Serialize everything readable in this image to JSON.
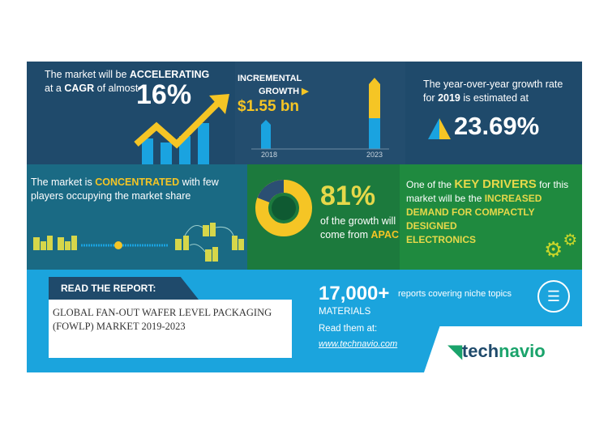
{
  "p1": {
    "l1a": "The market will be ",
    "l1b": "ACCELERATING",
    "l2a": "at a ",
    "l2b": "CAGR",
    "l2c": " of almost",
    "big": "16%"
  },
  "p2": {
    "t1": "INCREMENTAL",
    "t2": "GROWTH",
    "value": "$1.55 bn",
    "x1": "2018",
    "x2": "2023"
  },
  "p3": {
    "l1": "The year-over-year growth rate",
    "l2a": "for ",
    "l2b": "2019",
    "l2c": " is estimated at",
    "big": "23.69%"
  },
  "p4": {
    "l1a": "The market is ",
    "l1b": "CONCENTRATED",
    "l1c": " with few",
    "l2": "players occupying the market share"
  },
  "p5": {
    "big": "81%",
    "l1": "of the growth will",
    "l2a": "come from ",
    "l2b": "APAC",
    "share": 0.81
  },
  "p6": {
    "l1a": "One of the ",
    "l1b": "KEY DRIVERS",
    "l1c": " for this",
    "l2a": "market will be the ",
    "l2b": "INCREASED",
    "l3": "DEMAND FOR COMPACTLY DESIGNED",
    "l4": "ELECTRONICS"
  },
  "report": {
    "label": "READ THE REPORT:",
    "title1": "GLOBAL FAN-OUT WAFER LEVEL PACKAGING",
    "title2": "(FOWLP) MARKET 2019-2023"
  },
  "promo": {
    "count": "17,000+",
    "count_desc": "reports covering niche topics",
    "materials": "MATERIALS",
    "read": "Read them at:",
    "url": "www.technavio.com"
  },
  "logo": {
    "a": "tech",
    "b": "navio"
  },
  "colors": {
    "navy": "#1f4a6b",
    "teal": "#1a6a84",
    "green": "#1c7a3d",
    "yellow": "#f5c525",
    "blue": "#1ba4dd"
  }
}
